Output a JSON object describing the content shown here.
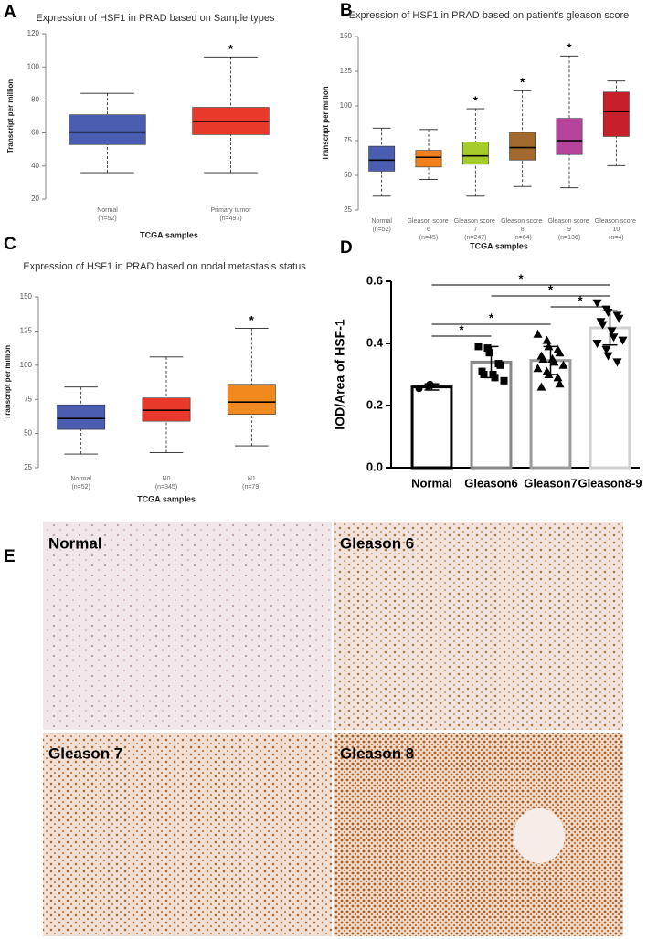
{
  "chart_data": [
    {
      "panel": "A",
      "type": "box",
      "title": "Expression of HSF1 in PRAD based on Sample types",
      "ylabel": "Transcript per million",
      "xlabel": "TCGA samples",
      "categories": [
        "Normal",
        "Primary tumor"
      ],
      "sample_sizes": [
        "(n=52)",
        "(n=497)"
      ],
      "boxes": [
        {
          "min": 36,
          "q1": 53,
          "median": 60.5,
          "q3": 71,
          "max": 84
        },
        {
          "min": 36,
          "q1": 59,
          "median": 67,
          "q3": 75.5,
          "max": 106
        }
      ],
      "colors": [
        "#4a5db0",
        "#e8392a"
      ],
      "significance": [
        null,
        "*"
      ],
      "ylim": [
        20,
        120
      ],
      "yticks": [
        20,
        40,
        60,
        80,
        100,
        120
      ]
    },
    {
      "panel": "B",
      "type": "box",
      "title": "Expression of HSF1 in PRAD based on patient's gleason score",
      "ylabel": "Transcript per million",
      "xlabel": "TCGA samples",
      "categories": [
        "Normal",
        "Gleason score 6",
        "Gleason score 7",
        "Gleason score 8",
        "Gleason score 9",
        "Gleason score 10"
      ],
      "sample_sizes": [
        "(n=52)",
        "(n=45)",
        "(n=247)",
        "(n=64)",
        "(n=136)",
        "(n=4)"
      ],
      "boxes": [
        {
          "min": 35,
          "q1": 53,
          "median": 61,
          "q3": 71,
          "max": 84
        },
        {
          "min": 47,
          "q1": 56,
          "median": 63,
          "q3": 68,
          "max": 83
        },
        {
          "min": 35,
          "q1": 58,
          "median": 64,
          "q3": 74,
          "max": 98
        },
        {
          "min": 42,
          "q1": 61,
          "median": 70,
          "q3": 81,
          "max": 111
        },
        {
          "min": 41,
          "q1": 65,
          "median": 75,
          "q3": 91,
          "max": 136
        },
        {
          "min": 57,
          "q1": 78,
          "median": 96,
          "q3": 110,
          "max": 118
        }
      ],
      "colors": [
        "#4a5db0",
        "#f0801e",
        "#a6cc2c",
        "#a2692e",
        "#b5449a",
        "#c8202a"
      ],
      "significance": [
        null,
        null,
        "*",
        "*",
        "*",
        null
      ],
      "ylim": [
        25,
        150
      ],
      "yticks": [
        25,
        50,
        75,
        100,
        125,
        150
      ]
    },
    {
      "panel": "C",
      "type": "box",
      "title": "Expression of HSF1 in PRAD based on nodal metastasis status",
      "ylabel": "Transcript per million",
      "xlabel": "TCGA samples",
      "categories": [
        "Normal",
        "N0",
        "N1"
      ],
      "sample_sizes": [
        "(n=52)",
        "(n=345)",
        "(n=79)"
      ],
      "boxes": [
        {
          "min": 35,
          "q1": 53,
          "median": 61,
          "q3": 71,
          "max": 84
        },
        {
          "min": 36,
          "q1": 59,
          "median": 67,
          "q3": 76,
          "max": 106
        },
        {
          "min": 41,
          "q1": 64,
          "median": 73,
          "q3": 86,
          "max": 127
        }
      ],
      "colors": [
        "#4a5db0",
        "#e8392a",
        "#f0891e"
      ],
      "significance": [
        null,
        null,
        "*"
      ],
      "ylim": [
        25,
        150
      ],
      "yticks": [
        25,
        50,
        75,
        100,
        125,
        150
      ]
    },
    {
      "panel": "D",
      "type": "bar",
      "ylabel": "IOD/Area of HSF-1",
      "categories": [
        "Normal",
        "Gleason6",
        "Gleason7",
        "Gleason8-9"
      ],
      "values": [
        0.26,
        0.34,
        0.345,
        0.45
      ],
      "errors": [
        0.01,
        0.05,
        0.045,
        0.055
      ],
      "points": [
        [
          0.255,
          0.262,
          0.268
        ],
        [
          0.39,
          0.385,
          0.37,
          0.335,
          0.33,
          0.31,
          0.3,
          0.3,
          0.29,
          0.28
        ],
        [
          0.43,
          0.41,
          0.39,
          0.38,
          0.37,
          0.36,
          0.35,
          0.35,
          0.34,
          0.33,
          0.32,
          0.31,
          0.3,
          0.29,
          0.27,
          0.26
        ],
        [
          0.53,
          0.51,
          0.5,
          0.49,
          0.48,
          0.47,
          0.46,
          0.44,
          0.42,
          0.41,
          0.4,
          0.38,
          0.36,
          0.34
        ]
      ],
      "markers": [
        "circle",
        "square",
        "triangle-up",
        "triangle-down"
      ],
      "colors": [
        "#000000",
        "#888888",
        "#9a9a9a",
        "#d0d0d0"
      ],
      "comparisons": [
        {
          "pair": [
            "Normal",
            "Gleason8-9"
          ],
          "label": "*"
        },
        {
          "pair": [
            "Gleason6",
            "Gleason8-9"
          ],
          "label": "*"
        },
        {
          "pair": [
            "Gleason7",
            "Gleason8-9"
          ],
          "label": "*"
        },
        {
          "pair": [
            "Normal",
            "Gleason7"
          ],
          "label": "*"
        },
        {
          "pair": [
            "Normal",
            "Gleason6"
          ],
          "label": "*"
        }
      ],
      "ylim": [
        0,
        0.6
      ],
      "yticks": [
        {
          "value": 0,
          "label": "0.0"
        },
        {
          "value": 0.2,
          "label": "0.2"
        },
        {
          "value": 0.4,
          "label": "0.4"
        },
        {
          "value": 0.6,
          "label": "0.6"
        }
      ]
    }
  ],
  "figure_images": {
    "panel": "E",
    "labels": [
      "Normal",
      "Gleason 6",
      "Gleason 7",
      "Gleason 8"
    ]
  }
}
